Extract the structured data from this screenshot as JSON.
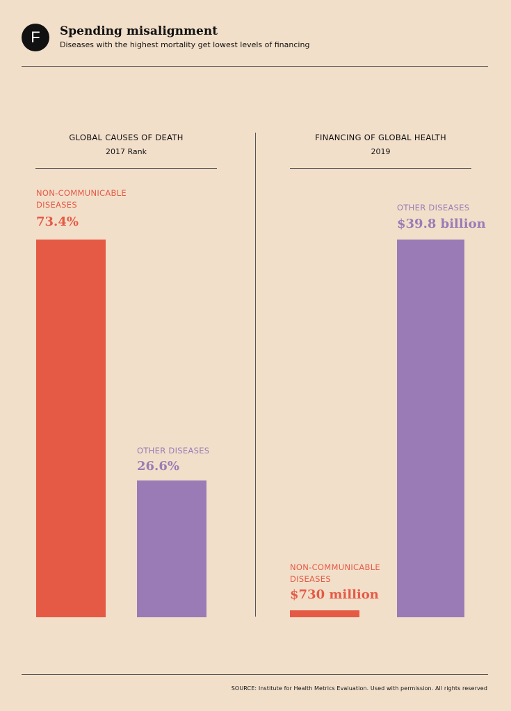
{
  "header": {
    "logo_letter": "F",
    "title": "Spending misalignment",
    "subtitle": "Diseases with the highest mortality get lowest levels of financing"
  },
  "colors": {
    "background": "#f2dfca",
    "ncd": "#e55a45",
    "other": "#9b7bb5"
  },
  "chart_data": [
    {
      "type": "bar",
      "title": "GLOBAL CAUSES OF DEATH",
      "subtitle": "2017 Rank",
      "categories": [
        "NON-COMMUNICABLE DISEASES",
        "OTHER DISEASES"
      ],
      "values": [
        73.4,
        26.6
      ],
      "labels": [
        "73.4%",
        "26.6%"
      ],
      "unit": "%",
      "ylim": [
        0,
        73.4
      ],
      "grid": false
    },
    {
      "type": "bar",
      "title": "FINANCING OF GLOBAL HEALTH",
      "subtitle": "2019",
      "categories": [
        "NON-COMMUNICABLE DISEASES",
        "OTHER DISEASES"
      ],
      "values": [
        0.73,
        39.8
      ],
      "labels": [
        "$730 million",
        "$39.8 billion"
      ],
      "unit": "billion USD",
      "ylim": [
        0,
        39.8
      ],
      "grid": false
    }
  ],
  "source": "SOURCE:  Institute for Health Metrics Evaluation. Used with permission. All rights reserved"
}
